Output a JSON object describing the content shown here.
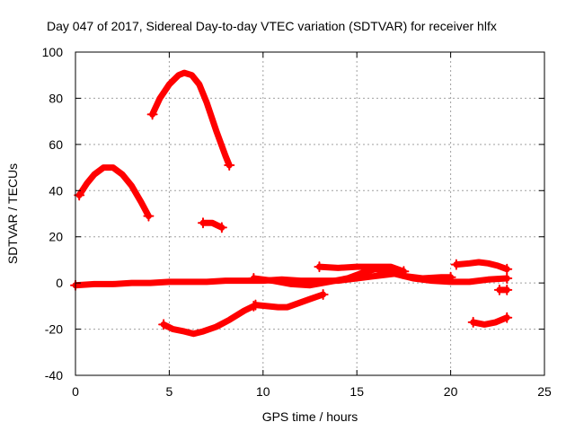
{
  "chart_data": {
    "type": "line",
    "title": "Day 047 of 2017, Sidereal Day-to-day VTEC variation (SDTVAR) for receiver hlfx",
    "xlabel": "GPS time / hours",
    "ylabel": "SDTVAR / TECUs",
    "xlim": [
      0,
      25
    ],
    "ylim": [
      -40,
      100
    ],
    "xticks": [
      0,
      5,
      10,
      15,
      20,
      25
    ],
    "yticks": [
      -40,
      -20,
      0,
      20,
      40,
      60,
      80,
      100
    ],
    "xtick_labels": [
      "0",
      "5",
      "10",
      "15",
      "20",
      "25"
    ],
    "ytick_labels": [
      "-40",
      "-20",
      "0",
      "20",
      "40",
      "60",
      "80",
      "100"
    ],
    "grid": true,
    "legend": "none",
    "color": "#ff0000",
    "series": [
      {
        "x": [
          0.2,
          0.6,
          1.0,
          1.5,
          2.0,
          2.5,
          3.0,
          3.5,
          3.9
        ],
        "y": [
          38,
          43,
          47,
          50,
          50,
          47,
          42,
          35,
          29
        ]
      },
      {
        "x": [
          4.1,
          4.5,
          5.0,
          5.5,
          5.8,
          6.2,
          6.6,
          7.0,
          7.5,
          8.0,
          8.2
        ],
        "y": [
          73,
          80,
          86,
          90,
          91,
          90,
          86,
          78,
          66,
          55,
          51
        ]
      },
      {
        "x": [
          6.8,
          7.3,
          7.8
        ],
        "y": [
          26,
          26,
          24
        ]
      },
      {
        "x": [
          0.0,
          1.0,
          2.0,
          3.0,
          4.0,
          5.0,
          6.0,
          7.0,
          8.0,
          9.0,
          10.0,
          11.0,
          12.0,
          13.0,
          14.0,
          15.0,
          16.0,
          17.0,
          18.0,
          19.0,
          20.0,
          21.0,
          22.0,
          23.0
        ],
        "y": [
          -1,
          -0.5,
          -0.5,
          0,
          0,
          0.5,
          0.5,
          0.5,
          1,
          1,
          1,
          1.5,
          1,
          1,
          1,
          2,
          3,
          4,
          2,
          1,
          0.5,
          0.5,
          1.5,
          2
        ]
      },
      {
        "x": [
          9.5,
          10.5,
          11.5,
          12.5,
          13.5,
          14.5,
          15.5,
          16.0,
          16.7,
          17.5,
          18.5,
          19.5,
          20.0
        ],
        "y": [
          2,
          1,
          -0.5,
          -1,
          0.5,
          2,
          5,
          6,
          5,
          3,
          2,
          2.5,
          2.5
        ]
      },
      {
        "x": [
          13.0,
          14.0,
          15.0,
          16.0,
          16.8,
          17.5
        ],
        "y": [
          7,
          6.5,
          7,
          7,
          7,
          5
        ]
      },
      {
        "x": [
          4.7,
          5.2,
          5.8,
          6.3,
          6.8,
          7.5,
          8.2,
          9.0,
          9.5
        ],
        "y": [
          -18,
          -20,
          -21,
          -22,
          -21,
          -19,
          -16,
          -12,
          -10
        ]
      },
      {
        "x": [
          9.6,
          10.2,
          10.8,
          11.3,
          11.8,
          12.5,
          13.2
        ],
        "y": [
          -9.5,
          -10,
          -10.5,
          -10.5,
          -9,
          -7,
          -5
        ]
      },
      {
        "x": [
          20.3,
          21.0,
          21.5,
          22.0,
          22.5,
          23.0
        ],
        "y": [
          8,
          8.5,
          9,
          8.5,
          7.5,
          6
        ]
      },
      {
        "x": [
          21.2,
          21.8,
          22.4,
          23.0
        ],
        "y": [
          -17,
          -18,
          -17,
          -15
        ]
      },
      {
        "x": [
          22.6,
          23.0
        ],
        "y": [
          -3,
          -3
        ]
      }
    ]
  }
}
